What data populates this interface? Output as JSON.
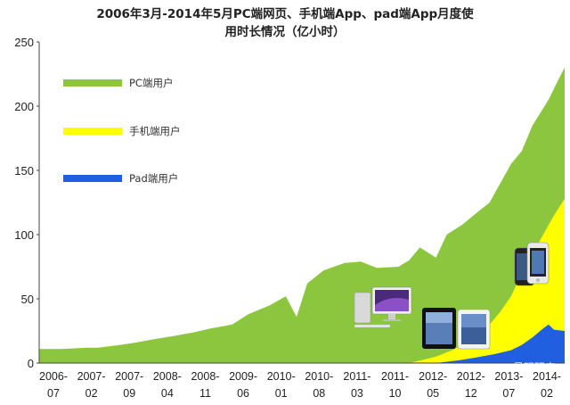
{
  "chart_data": {
    "type": "area",
    "title_line1": "2006年3月-2014年5月PC端网页、手机端App、pad端App月度使",
    "title_line2": "用时长情况（亿小时）",
    "ylim": [
      0,
      250
    ],
    "y_ticks": [
      "0",
      "50",
      "100",
      "150",
      "200",
      "250"
    ],
    "x_ticks": [
      {
        "year": "2006-",
        "month": "07"
      },
      {
        "year": "2007-",
        "month": "02"
      },
      {
        "year": "2007-",
        "month": "09"
      },
      {
        "year": "2008-",
        "month": "04"
      },
      {
        "year": "2008-",
        "month": "11"
      },
      {
        "year": "2009-",
        "month": "06"
      },
      {
        "year": "2010-",
        "month": "01"
      },
      {
        "year": "2010-",
        "month": "08"
      },
      {
        "year": "2011-",
        "month": "03"
      },
      {
        "year": "2011-",
        "month": "10"
      },
      {
        "year": "2012-",
        "month": "05"
      },
      {
        "year": "2012-",
        "month": "12"
      },
      {
        "year": "2013-",
        "month": "07"
      },
      {
        "year": "2014-",
        "month": "02"
      }
    ],
    "series": [
      {
        "name": "PC端用户",
        "color": "#8cc63f",
        "points": [
          [
            "2006-03",
            11
          ],
          [
            "2006-07",
            11
          ],
          [
            "2006-12",
            12
          ],
          [
            "2007-02",
            12
          ],
          [
            "2007-06",
            14
          ],
          [
            "2007-09",
            16
          ],
          [
            "2008-01",
            19
          ],
          [
            "2008-04",
            21
          ],
          [
            "2008-08",
            24
          ],
          [
            "2008-11",
            27
          ],
          [
            "2009-03",
            30
          ],
          [
            "2009-06",
            38
          ],
          [
            "2009-10",
            45
          ],
          [
            "2010-01",
            52
          ],
          [
            "2010-03",
            36
          ],
          [
            "2010-05",
            62
          ],
          [
            "2010-08",
            72
          ],
          [
            "2010-12",
            78
          ],
          [
            "2011-03",
            79
          ],
          [
            "2011-06",
            74
          ],
          [
            "2011-10",
            75
          ],
          [
            "2011-12",
            80
          ],
          [
            "2012-02",
            90
          ],
          [
            "2012-05",
            82
          ],
          [
            "2012-07",
            100
          ],
          [
            "2012-10",
            108
          ],
          [
            "2012-12",
            115
          ],
          [
            "2013-03",
            125
          ],
          [
            "2013-05",
            140
          ],
          [
            "2013-07",
            155
          ],
          [
            "2013-09",
            165
          ],
          [
            "2013-11",
            185
          ],
          [
            "2014-02",
            205
          ],
          [
            "2014-04",
            222
          ],
          [
            "2014-05",
            230
          ]
        ]
      },
      {
        "name": "手机端用户",
        "color": "#ffff00",
        "points": [
          [
            "2011-12",
            0
          ],
          [
            "2012-03",
            3
          ],
          [
            "2012-05",
            5
          ],
          [
            "2012-08",
            10
          ],
          [
            "2012-12",
            18
          ],
          [
            "2013-03",
            30
          ],
          [
            "2013-05",
            40
          ],
          [
            "2013-07",
            52
          ],
          [
            "2013-09",
            70
          ],
          [
            "2013-11",
            85
          ],
          [
            "2014-01",
            100
          ],
          [
            "2014-03",
            115
          ],
          [
            "2014-05",
            128
          ]
        ]
      },
      {
        "name": "Pad端用户",
        "color": "#1f5fe0",
        "points": [
          [
            "2012-05",
            0
          ],
          [
            "2012-09",
            2
          ],
          [
            "2012-12",
            4
          ],
          [
            "2013-04",
            7
          ],
          [
            "2013-07",
            10
          ],
          [
            "2013-09",
            14
          ],
          [
            "2013-11",
            20
          ],
          [
            "2014-01",
            27
          ],
          [
            "2014-02",
            30
          ],
          [
            "2014-03",
            26
          ],
          [
            "2014-05",
            25
          ]
        ]
      }
    ],
    "legend_position": "top-left",
    "grid": false
  },
  "watermark": "易观研究"
}
